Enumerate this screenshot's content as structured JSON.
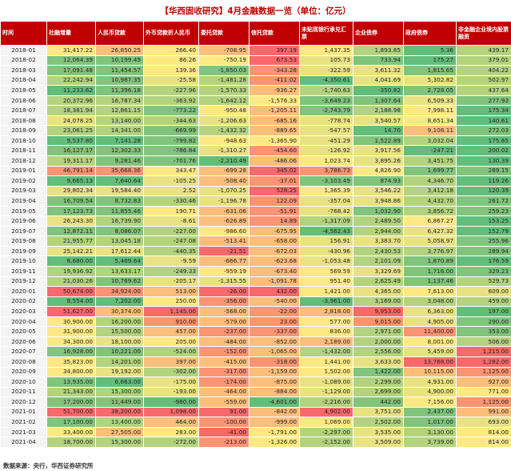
{
  "title": "【华西固收研究】4月金融数据一览（单位：亿元）",
  "source": "数据来源：央行，华西证券研究所",
  "headers": [
    "时间",
    "社融增量",
    "人民币贷款",
    "外币贷款折人民币",
    "委托贷款",
    "信托贷款",
    "未贴现银行承兑汇票",
    "企业债券",
    "政府债券",
    "非金融企业境内股票融资"
  ],
  "palette": [
    "#f8696b",
    "#fa9473",
    "#fbbe7b",
    "#fde983",
    "#e8e282",
    "#b3d37e",
    "#81c47c",
    "#63be7b"
  ],
  "rows": [
    [
      "2018-01",
      "31,417.22",
      "26,850.25",
      "266.40",
      "-708.95",
      "397.19",
      "1,437.35",
      "1,893.85",
      "5.36",
      "439.17"
    ],
    [
      "2018-02",
      "12,064.39",
      "10,199.49",
      "86.26",
      "-750.19",
      "673.53",
      "105.73",
      "733.94",
      "175.27",
      "379.01"
    ],
    [
      "2018-03",
      "17,091.48",
      "11,454.57",
      "139.36",
      "-1,850.03",
      "-343.28",
      "-322.59",
      "3,611.32",
      "1,815.65",
      "404.22"
    ],
    [
      "2018-04",
      "22,242.94",
      "10,987.35",
      "-25.58",
      "-1,481.28",
      "-411.02",
      "-4,350.61",
      "4,041.69",
      "5,302.82",
      "502.97"
    ],
    [
      "2018-05",
      "11,233.62",
      "11,396.18",
      "-227.96",
      "-1,570.33",
      "-936.27",
      "-1,740.63",
      "-350.82",
      "2,728.05",
      "437.64"
    ],
    [
      "2018-06",
      "20,372.96",
      "16,787.34",
      "-363.92",
      "-1,642.12",
      "-1,576.33",
      "-3,649.23",
      "1,307.64",
      "6,509.33",
      "277.93"
    ],
    [
      "2018-07",
      "18,381.94",
      "12,861.15",
      "-773.22",
      "-950.48",
      "-1,205.11",
      "-2,743.79",
      "2,188.98",
      "7,998.11",
      "175.34"
    ],
    [
      "2018-08",
      "24,078.25",
      "13,140.00",
      "-344.63",
      "-1,206.63",
      "-685.16",
      "-778.74",
      "3,540.57",
      "8,651.34",
      "140.61"
    ],
    [
      "2018-09",
      "23,061.25",
      "14,341.00",
      "-669.99",
      "-1,432.32",
      "-889.65",
      "-547.57",
      "14.70",
      "9,108.11",
      "272.03"
    ],
    [
      "2018-10",
      "9,537.80",
      "7,141.28",
      "-799.82",
      "-948.63",
      "-1,365.90",
      "-451.29",
      "1,522.89",
      "3,032.04",
      "175.65"
    ],
    [
      "2018-11",
      "16,127.17",
      "12,302.33",
      "-786.84",
      "-1,310.27",
      "-454.60",
      "-126.92",
      "3,917.56",
      "-247.21",
      "200.02"
    ],
    [
      "2018-12",
      "19,311.17",
      "9,281.46",
      "-701.76",
      "-2,210.49",
      "-486.06",
      "1,023.74",
      "3,895.26",
      "3,451.75",
      "130.39"
    ],
    [
      "2019-01",
      "46,791.14",
      "35,668.36",
      "343.47",
      "-699.28",
      "345.02",
      "3,786.73",
      "4,826.90",
      "1,699.77",
      "289.15"
    ],
    [
      "2019-02",
      "9,665.13",
      "7,640.64",
      "-105.25",
      "-508.40",
      "-37.01",
      "-3,103.49",
      "874.93",
      "4,346.70",
      "119.26"
    ],
    [
      "2019-03",
      "29,802.34",
      "19,584.40",
      "2.52",
      "-1,070.25",
      "528.25",
      "1,365.39",
      "3,546.22",
      "3,412.18",
      "120.39"
    ],
    [
      "2019-04",
      "16,709.54",
      "8,732.83",
      "-330.46",
      "-1,196.78",
      "122.09",
      "-357.04",
      "3,948.86",
      "4,432.70",
      "261.72"
    ],
    [
      "2019-05",
      "17,123.73",
      "11,855.46",
      "190.71",
      "-631.06",
      "-51.91",
      "-768.42",
      "1,032.90",
      "3,856.72",
      "259.23"
    ],
    [
      "2019-06",
      "26,243.30",
      "16,739.90",
      "-8.61",
      "-626.89",
      "14.89",
      "-1,317.09",
      "2,489.50",
      "6,867.27",
      "153.25"
    ],
    [
      "2019-07",
      "12,872.11",
      "8,086.07",
      "-227.00",
      "-986.60",
      "-675.95",
      "-4,562.43",
      "2,944.00",
      "6,427.32",
      "152.79"
    ],
    [
      "2019-08",
      "21,955.77",
      "13,045.18",
      "-247.08",
      "-513.41",
      "-658.00",
      "156.91",
      "3,383.70",
      "5,058.97",
      "255.96"
    ],
    [
      "2019-09",
      "25,142.21",
      "17,612.44",
      "-440.35",
      "-21.51",
      "-672.03",
      "-430.96",
      "2,430.53",
      "3,776.97",
      "289.94"
    ],
    [
      "2019-10",
      "8,680.00",
      "5,469.64",
      "-9.59",
      "-666.77",
      "-623.68",
      "-1,053.48",
      "2,101.09",
      "1,870.89",
      "176.59"
    ],
    [
      "2019-11",
      "19,936.92",
      "13,633.17",
      "-249.33",
      "-959.19",
      "-673.40",
      "569.59",
      "3,329.69",
      "1,716.00",
      "329.23"
    ],
    [
      "2019-12",
      "21,030.26",
      "10,769.62",
      "-205.17",
      "-1,315.55",
      "-1,091.78",
      "951.40",
      "2,625.49",
      "1,137.46",
      "529.73"
    ],
    [
      "2020-01",
      "50,674.00",
      "34,924.00",
      "513.00",
      "-26.00",
      "432.00",
      "1,421.00",
      "4,365.00",
      "7,613.00",
      "609.00"
    ],
    [
      "2020-02",
      "8,554.00",
      "7,202.00",
      "250.00",
      "-356.00",
      "-540.00",
      "-3,961.00",
      "3,169.00",
      "3,048.00",
      "459.00"
    ],
    [
      "2020-03",
      "51,627.00",
      "30,374.00",
      "1,145.00",
      "-568.00",
      "-22.00",
      "2,818.00",
      "9,953.00",
      "6,363.00",
      "197.00"
    ],
    [
      "2020-04",
      "30,900.00",
      "16,200.00",
      "910.00",
      "-579.00",
      "23.00",
      "577.00",
      "9,015.00",
      "4,905.00",
      "290.00"
    ],
    [
      "2020-05",
      "31,900.00",
      "15,500.00",
      "457.00",
      "-237.00",
      "-337.00",
      "836.00",
      "2,971.00",
      "11,400.00",
      "353.00"
    ],
    [
      "2020-06",
      "34,300.00",
      "18,100.00",
      "205.00",
      "-484.00",
      "-852.00",
      "2,189.00",
      "2,000.00",
      "8,001.00",
      "506.00"
    ],
    [
      "2020-07",
      "16,928.00",
      "10,221.00",
      "-524.00",
      "-152.00",
      "-1,065.00",
      "-1,432.00",
      "2,556.00",
      "5,459.00",
      "1,215.00"
    ],
    [
      "2020-08",
      "35,823.00",
      "14,201.00",
      "397.00",
      "-415.00",
      "-318.00",
      "1,441.00",
      "3,633.00",
      "13,768.00",
      "1,282.00"
    ],
    [
      "2020-09",
      "34,800.00",
      "19,192.00",
      "-302.00",
      "-317.00",
      "-1,159.00",
      "1,502.00",
      "1,422.00",
      "10,115.00",
      "1,125.00"
    ],
    [
      "2020-10",
      "13,935.00",
      "6,663.00",
      "-175.00",
      "-174.00",
      "-875.00",
      "-1,089.00",
      "2,299.00",
      "4,931.00",
      "927.00"
    ],
    [
      "2020-11",
      "21,343.00",
      "15,300.00",
      "-193.00",
      "-464.00",
      "-884.00",
      "-1,129.00",
      "2,699.00",
      "4,900.00",
      "771.00"
    ],
    [
      "2020-12",
      "17,200.00",
      "11,449.00",
      "-980.00",
      "-559.00",
      "-4,601.00",
      "-2,216.00",
      "442.00",
      "7,156.00",
      "1,125.00"
    ],
    [
      "2021-01",
      "51,700.00",
      "38,200.00",
      "1,098.00",
      "91.00",
      "-842.00",
      "4,902.00",
      "3,751.00",
      "2,437.00",
      "991.00"
    ],
    [
      "2021-02",
      "17,100.00",
      "13,400.00",
      "464.00",
      "-100.00",
      "-999.00",
      "1,069.00",
      "2,502.00",
      "1,017.00",
      "693.00"
    ],
    [
      "2021-03",
      "33,400.00",
      "27,505.00",
      "283.00",
      "-41.00",
      "-1,791.00",
      "-2,297.00",
      "3,535.00",
      "3,130.00",
      "814.00"
    ],
    [
      "2021-04",
      "18,700.00",
      "15,300.00",
      "-272.00",
      "-213.00",
      "-1,326.00",
      "-2,152.00",
      "3,509.00",
      "3,739.00",
      "814.00"
    ]
  ]
}
